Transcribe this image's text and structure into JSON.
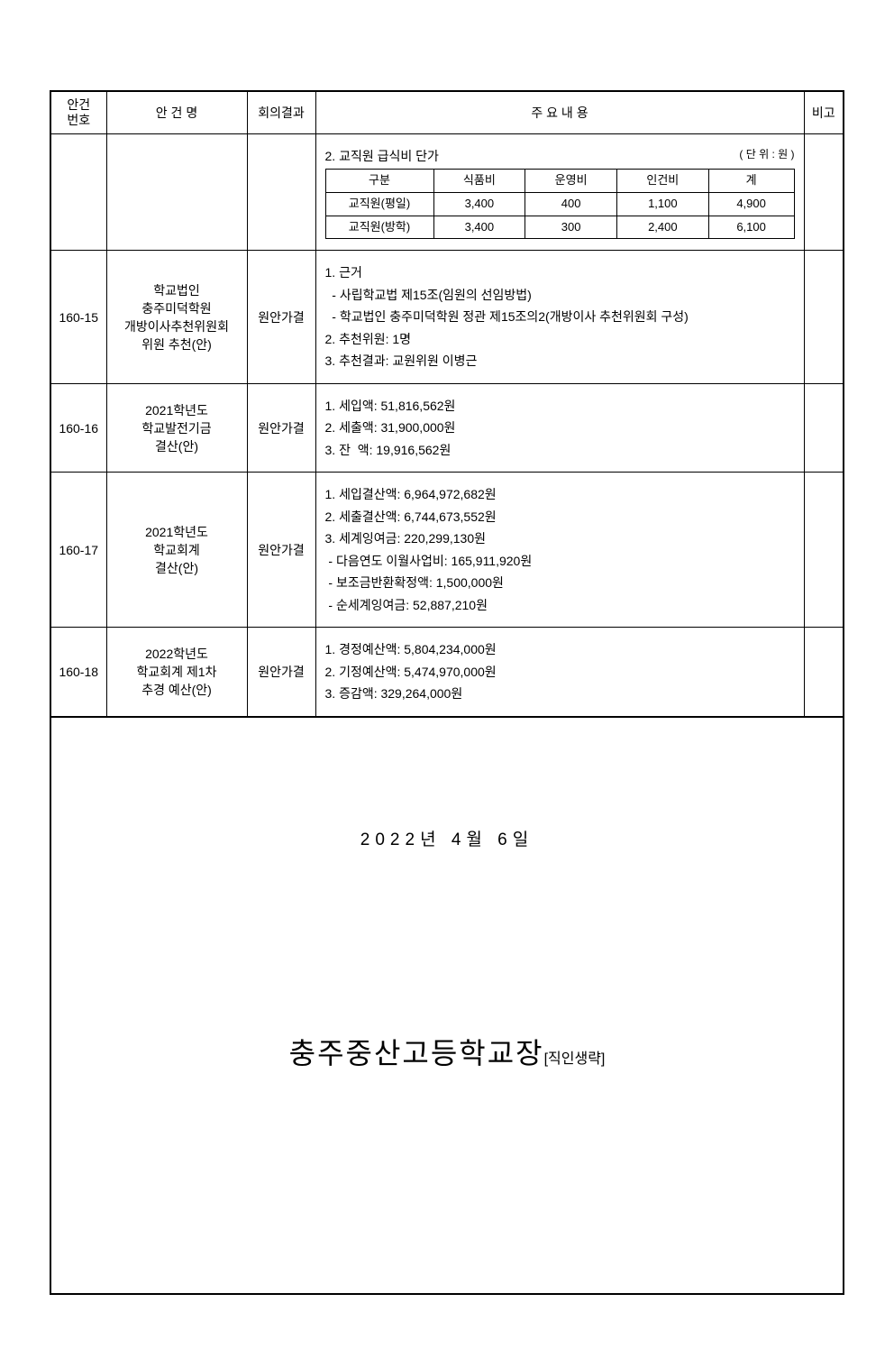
{
  "headers": {
    "num1": "안건",
    "num2": "번호",
    "name": "안 건 명",
    "result": "회의결과",
    "content": "주 요 내 용",
    "remark": "비고"
  },
  "fee_section": {
    "title": "2. 교직원 급식비 단가",
    "unit": "( 단 위 : 원 )",
    "cols": [
      "구분",
      "식품비",
      "운영비",
      "인건비",
      "계"
    ],
    "rows": [
      {
        "label": "교직원(평일)",
        "food": "3,400",
        "oper": "400",
        "labor": "1,100",
        "total": "4,900"
      },
      {
        "label": "교직원(방학)",
        "food": "3,400",
        "oper": "300",
        "labor": "2,400",
        "total": "6,100"
      }
    ]
  },
  "rows": [
    {
      "num": "160-15",
      "name1": "학교법인",
      "name2": "충주미덕학원",
      "name3": "개방이사추천위원회",
      "name4": "위원 추천(안)",
      "result": "원안가결",
      "c1": "1. 근거",
      "c2": "  - 사립학교법 제15조(임원의 선임방법)",
      "c3": "  - 학교법인 충주미덕학원 정관 제15조의2(개방이사 추천위원회 구성)",
      "c4": "2. 추천위원: 1명",
      "c5": "3. 추천결과: 교원위원 이병근"
    },
    {
      "num": "160-16",
      "name1": "2021학년도",
      "name2": "학교발전기금",
      "name3": "결산(안)",
      "result": "원안가결",
      "c1": "1. 세입액: 51,816,562원",
      "c2": "2. 세출액: 31,900,000원",
      "c3": "3. 잔  액: 19,916,562원"
    },
    {
      "num": "160-17",
      "name1": "2021학년도",
      "name2": "학교회계",
      "name3": "결산(안)",
      "result": "원안가결",
      "c1": "1. 세입결산액: 6,964,972,682원",
      "c2": "2. 세출결산액: 6,744,673,552원",
      "c3": "3. 세계잉여금: 220,299,130원",
      "c4": " - 다음연도 이월사업비: 165,911,920원",
      "c5": " - 보조금반환확정액: 1,500,000원",
      "c6": " - 순세계잉여금: 52,887,210원"
    },
    {
      "num": "160-18",
      "name1": "2022학년도",
      "name2": "학교회계 제1차",
      "name3": "추경 예산(안)",
      "result": "원안가결",
      "c1": "1. 경정예산액: 5,804,234,000원",
      "c2": "2. 기정예산액: 5,474,970,000원",
      "c3": "3. 증감액: 329,264,000원"
    }
  ],
  "date": "2022년  4월  6일",
  "principal": "충주중산고등학교장",
  "principal_suffix": "[직인생략]"
}
